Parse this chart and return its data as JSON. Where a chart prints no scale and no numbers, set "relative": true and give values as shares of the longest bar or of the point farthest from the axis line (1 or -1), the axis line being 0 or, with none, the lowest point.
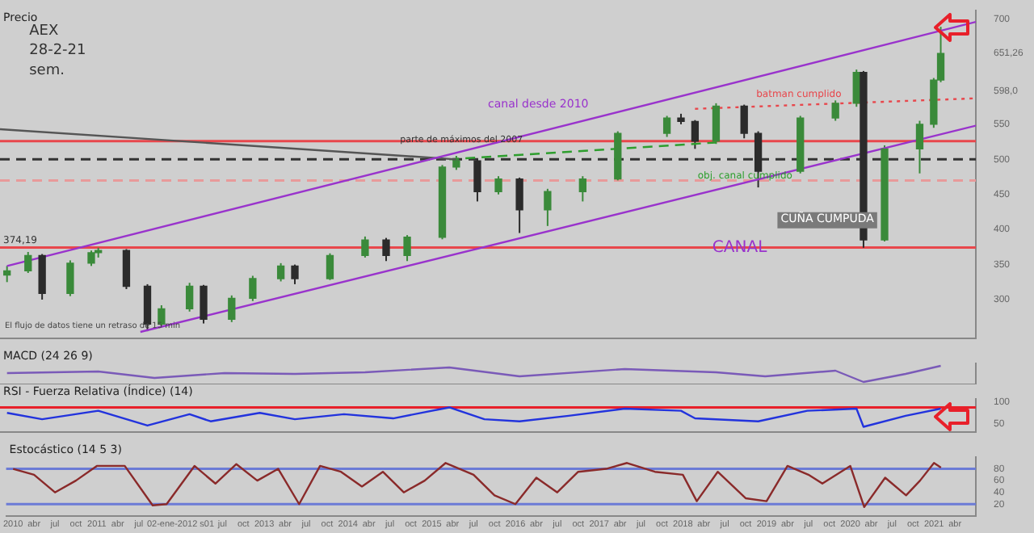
{
  "chart_data": [
    {
      "type": "candlestick",
      "title": "Precio",
      "annotations": [
        "AEX",
        "28-2-21",
        "sem.",
        "canal desde 2010",
        "batman cumplido",
        "obj. canal cumplido",
        "CANAL",
        "CUÑA CUMPUDA",
        "parte de máximos del 2007",
        "El flujo de datos tiene un retraso de 15 min"
      ],
      "xlim": [
        "2009-12",
        "2021-07"
      ],
      "ylim": [
        245,
        712
      ],
      "yticks": [
        300,
        350,
        400,
        450,
        500,
        550,
        {
          "value": 598,
          "label": "598,0"
        },
        {
          "value": 651.26,
          "label": "651,26"
        },
        700
      ],
      "grid": false,
      "legend": false,
      "tick_labels": "y",
      "ref_lines": [
        {
          "axis": "y",
          "value": 374.19,
          "label": "374,19",
          "color": "#e8474c"
        },
        {
          "axis": "y",
          "value": 500,
          "color": "#333333",
          "line_style": "dashed"
        },
        {
          "axis": "y",
          "value": 526,
          "color": "#e8474c"
        },
        {
          "axis": "y",
          "value": 470,
          "color": "#e89a9a",
          "line_style": "dashed"
        }
      ],
      "series": [
        {
          "colors": [
            "#3a8a3a",
            "#3a8a3a",
            "#2b2b2b",
            "#3a8a3a",
            "#3a8a3a",
            "#3a8a3a",
            "#2b2b2b",
            "#2b2b2b",
            "#3a8a3a",
            "#3a8a3a",
            "#2b2b2b",
            "#3a8a3a",
            "#3a8a3a",
            "#3a8a3a",
            "#2b2b2b",
            "#3a8a3a",
            "#3a8a3a",
            "#2b2b2b",
            "#3a8a3a",
            "#3a8a3a",
            "#3a8a3a",
            "#2b2b2b",
            "#3a8a3a",
            "#2b2b2b",
            "#3a8a3a",
            "#3a8a3a",
            "#3a8a3a",
            "#3a8a3a",
            "#2b2b2b",
            "#2b2b2b",
            "#3a8a3a",
            "#2b2b2b",
            "#2b2b2b",
            "#3a8a3a",
            "#3a8a3a",
            "#3a8a3a",
            "#2b2b2b",
            "#3a8a3a",
            "#3a8a3a",
            "#3a8a3a",
            "#3a8a3a"
          ],
          "x": [
            "2010-01",
            "2010-04",
            "2010-06",
            "2010-10",
            "2011-01",
            "2011-02",
            "2011-06",
            "2011-09",
            "2011-11",
            "2012-03",
            "2012-05",
            "2012-09",
            "2012-12",
            "2013-04",
            "2013-06",
            "2013-11",
            "2014-04",
            "2014-07",
            "2014-10",
            "2015-03",
            "2015-05",
            "2015-08",
            "2015-11",
            "2016-02",
            "2016-06",
            "2016-11",
            "2017-04",
            "2017-11",
            "2018-01",
            "2018-03",
            "2018-06",
            "2018-10",
            "2018-12",
            "2019-06",
            "2019-11",
            "2020-02",
            "2020-03",
            "2020-06",
            "2020-11",
            "2021-01",
            "2021-02"
          ],
          "ohlc": [
            [
              335,
              348,
              325,
              341
            ],
            [
              341,
              368,
              338,
              363
            ],
            [
              363,
              365,
              300,
              309
            ],
            [
              309,
              356,
              305,
              352
            ],
            [
              352,
              370,
              348,
              367
            ],
            [
              367,
              374,
              360,
              370
            ],
            [
              370,
              372,
              315,
              319
            ],
            [
              319,
              322,
              255,
              265
            ],
            [
              265,
              292,
              260,
              287
            ],
            [
              287,
              324,
              283,
              319
            ],
            [
              319,
              321,
              266,
              272
            ],
            [
              272,
              306,
              268,
              302
            ],
            [
              302,
              334,
              298,
              330
            ],
            [
              330,
              352,
              326,
              348
            ],
            [
              348,
              350,
              322,
              330
            ],
            [
              330,
              366,
              328,
              363
            ],
            [
              363,
              390,
              360,
              385
            ],
            [
              385,
              388,
              355,
              363
            ],
            [
              363,
              392,
              355,
              389
            ],
            [
              389,
              492,
              386,
              489
            ],
            [
              489,
              505,
              485,
              498
            ],
            [
              498,
              500,
              440,
              454
            ],
            [
              454,
              476,
              450,
              472
            ],
            [
              472,
              474,
              395,
              428
            ],
            [
              428,
              458,
              405,
              454
            ],
            [
              454,
              476,
              440,
              472
            ],
            [
              472,
              540,
              470,
              537
            ],
            [
              537,
              562,
              532,
              559
            ],
            [
              559,
              565,
              550,
              554
            ],
            [
              554,
              556,
              515,
              526
            ],
            [
              526,
              580,
              522,
              576
            ],
            [
              576,
              578,
              530,
              537
            ],
            [
              537,
              540,
              460,
              483
            ],
            [
              483,
              562,
              480,
              559
            ],
            [
              559,
              584,
              555,
              580
            ],
            [
              580,
              628,
              575,
              624
            ],
            [
              624,
              626,
              374,
              385
            ],
            [
              385,
              520,
              383,
              515
            ],
            [
              515,
              555,
              480,
              550
            ],
            [
              550,
              616,
              545,
              613
            ],
            [
              613,
              689,
              610,
              651
            ]
          ]
        },
        {
          "type": "line",
          "color": "#9933cc",
          "line_style": "solid",
          "x": [
            "2010-01",
            "2021-07"
          ],
          "values": [
            348,
            696
          ]
        },
        {
          "type": "line",
          "color": "#9933cc",
          "line_style": "solid",
          "x": [
            "2011-08",
            "2021-07"
          ],
          "values": [
            254,
            548
          ]
        },
        {
          "type": "line",
          "color": "#555555",
          "line_style": "solid",
          "x": [
            "2009-12",
            "2015-05"
          ],
          "values": [
            543,
            500
          ]
        },
        {
          "type": "line",
          "color": "#2e9e2e",
          "line_style": "dashed",
          "x": [
            "2015-04",
            "2018-06"
          ],
          "values": [
            500,
            524
          ]
        },
        {
          "type": "line",
          "color": "#e8474c",
          "line_style": "dotted",
          "x": [
            "2018-03",
            "2021-07"
          ],
          "values": [
            572,
            587
          ]
        }
      ]
    },
    {
      "type": "line",
      "title": "MACD (24 26 9)",
      "relative": true,
      "xlim": [
        "2009-12",
        "2021-07"
      ],
      "tick_labels": false,
      "grid": false,
      "legend": false,
      "series": [
        {
          "color": "#7a5ab8",
          "line_style": "solid",
          "x": [
            "2010-01",
            "2011-02",
            "2011-10",
            "2012-08",
            "2013-06",
            "2014-04",
            "2015-04",
            "2016-02",
            "2017-05",
            "2018-06",
            "2019-01",
            "2019-11",
            "2020-03",
            "2020-09",
            "2021-02"
          ],
          "values": [
            0.55,
            0.65,
            0.25,
            0.55,
            0.5,
            0.6,
            0.9,
            0.35,
            0.8,
            0.6,
            0.35,
            0.7,
            0,
            0.5,
            1
          ]
        }
      ]
    },
    {
      "type": "line",
      "title": "RSI - Fuerza Relativa (Índice) (14)",
      "xlim": [
        "2009-12",
        "2021-07"
      ],
      "ylim": [
        30,
        108
      ],
      "yticks": [
        50,
        100
      ],
      "tick_labels": "y",
      "grid": false,
      "legend": false,
      "ref_lines": [
        {
          "axis": "y",
          "value": 88,
          "color": "#e8202a"
        }
      ],
      "series": [
        {
          "color": "#2233dd",
          "line_style": "solid",
          "x": [
            "2010-01",
            "2010-06",
            "2010-10",
            "2011-02",
            "2011-09",
            "2012-03",
            "2012-06",
            "2013-01",
            "2013-06",
            "2014-01",
            "2014-08",
            "2015-04",
            "2015-09",
            "2016-02",
            "2016-09",
            "2017-05",
            "2018-01",
            "2018-03",
            "2018-12",
            "2019-07",
            "2020-02",
            "2020-03",
            "2020-09",
            "2021-02"
          ],
          "values": [
            75,
            60,
            70,
            80,
            45,
            72,
            55,
            75,
            60,
            72,
            62,
            88,
            60,
            55,
            68,
            85,
            80,
            62,
            55,
            80,
            85,
            42,
            68,
            85
          ]
        }
      ]
    },
    {
      "type": "line",
      "title": "Estocástico (14 5 3)",
      "xlim": [
        "2009-12",
        "2021-07"
      ],
      "ylim": [
        0,
        100
      ],
      "yticks": [
        20,
        40,
        60,
        80
      ],
      "grid": false,
      "legend": false,
      "xticks": [
        {
          "value": "2010-01",
          "label": "2010"
        },
        {
          "value": "2010-04",
          "label": "abr"
        },
        {
          "value": "2010-07",
          "label": "jul"
        },
        {
          "value": "2010-10",
          "label": "oct"
        },
        {
          "value": "2011-01",
          "label": "2011"
        },
        {
          "value": "2011-04",
          "label": "abr"
        },
        {
          "value": "2011-07",
          "label": "jul"
        },
        {
          "value": "2012-01",
          "label": "02-ene-2012 s01"
        },
        {
          "value": "2012-07",
          "label": "jul"
        },
        {
          "value": "2012-10",
          "label": "oct"
        },
        {
          "value": "2013-01",
          "label": "2013"
        },
        {
          "value": "2013-04",
          "label": "abr"
        },
        {
          "value": "2013-07",
          "label": "jul"
        },
        {
          "value": "2013-10",
          "label": "oct"
        },
        {
          "value": "2014-01",
          "label": "2014"
        },
        {
          "value": "2014-04",
          "label": "abr"
        },
        {
          "value": "2014-07",
          "label": "jul"
        },
        {
          "value": "2014-10",
          "label": "oct"
        },
        {
          "value": "2015-01",
          "label": "2015"
        },
        {
          "value": "2015-04",
          "label": "abr"
        },
        {
          "value": "2015-07",
          "label": "jul"
        },
        {
          "value": "2015-10",
          "label": "oct"
        },
        {
          "value": "2016-01",
          "label": "2016"
        },
        {
          "value": "2016-04",
          "label": "abr"
        },
        {
          "value": "2016-07",
          "label": "jul"
        },
        {
          "value": "2016-10",
          "label": "oct"
        },
        {
          "value": "2017-01",
          "label": "2017"
        },
        {
          "value": "2017-04",
          "label": "abr"
        },
        {
          "value": "2017-07",
          "label": "jul"
        },
        {
          "value": "2017-10",
          "label": "oct"
        },
        {
          "value": "2018-01",
          "label": "2018"
        },
        {
          "value": "2018-04",
          "label": "abr"
        },
        {
          "value": "2018-07",
          "label": "jul"
        },
        {
          "value": "2018-10",
          "label": "oct"
        },
        {
          "value": "2019-01",
          "label": "2019"
        },
        {
          "value": "2019-04",
          "label": "abr"
        },
        {
          "value": "2019-07",
          "label": "jul"
        },
        {
          "value": "2019-10",
          "label": "oct"
        },
        {
          "value": "2020-01",
          "label": "2020"
        },
        {
          "value": "2020-04",
          "label": "abr"
        },
        {
          "value": "2020-07",
          "label": "jul"
        },
        {
          "value": "2020-10",
          "label": "oct"
        },
        {
          "value": "2021-01",
          "label": "2021"
        },
        {
          "value": "2021-04",
          "label": "abr"
        }
      ],
      "ref_lines": [
        {
          "axis": "y",
          "value": 20,
          "color": "#6b7bd6"
        },
        {
          "axis": "y",
          "value": 80,
          "color": "#6b7bd6"
        }
      ],
      "series": [
        {
          "color": "#8a2a2a",
          "line_style": "solid",
          "x": [
            "2010-01",
            "2010-04",
            "2010-07",
            "2010-10",
            "2011-01",
            "2011-05",
            "2011-09",
            "2011-11",
            "2012-03",
            "2012-06",
            "2012-09",
            "2012-12",
            "2013-03",
            "2013-06",
            "2013-09",
            "2013-12",
            "2014-03",
            "2014-06",
            "2014-09",
            "2014-12",
            "2015-03",
            "2015-07",
            "2015-10",
            "2016-01",
            "2016-04",
            "2016-07",
            "2016-10",
            "2017-02",
            "2017-05",
            "2017-09",
            "2018-01",
            "2018-03",
            "2018-06",
            "2018-10",
            "2019-01",
            "2019-04",
            "2019-07",
            "2019-09",
            "2020-01",
            "2020-03",
            "2020-06",
            "2020-09",
            "2020-11",
            "2021-01",
            "2021-02"
          ],
          "values": [
            80,
            70,
            40,
            60,
            85,
            85,
            18,
            20,
            85,
            55,
            88,
            60,
            80,
            20,
            85,
            75,
            50,
            75,
            40,
            60,
            90,
            70,
            35,
            20,
            65,
            40,
            75,
            80,
            90,
            75,
            70,
            25,
            75,
            30,
            25,
            85,
            70,
            55,
            85,
            15,
            65,
            35,
            60,
            90,
            82
          ]
        }
      ]
    }
  ]
}
